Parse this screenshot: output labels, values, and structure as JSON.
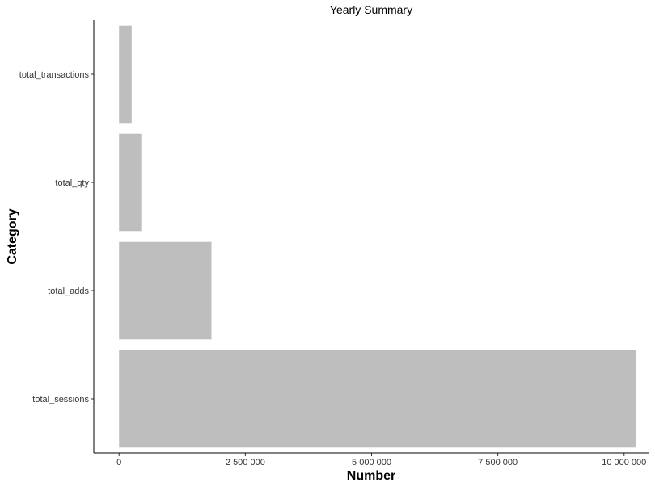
{
  "chart_data": {
    "type": "bar",
    "orientation": "horizontal",
    "title": "Yearly Summary",
    "xlabel": "Number",
    "ylabel": "Category",
    "categories": [
      "total_transactions",
      "total_qty",
      "total_adds",
      "total_sessions"
    ],
    "values": [
      250000,
      440000,
      1830000,
      10240000
    ],
    "xlim": [
      -500000,
      10500000
    ],
    "xticks": [
      0,
      2500000,
      5000000,
      7500000,
      10000000
    ],
    "xtick_labels": [
      "0",
      "2 500 000",
      "5 000 000",
      "7 500 000",
      "10 000 000"
    ],
    "bar_color": "#bebebe",
    "grid": false,
    "legend": "none"
  }
}
